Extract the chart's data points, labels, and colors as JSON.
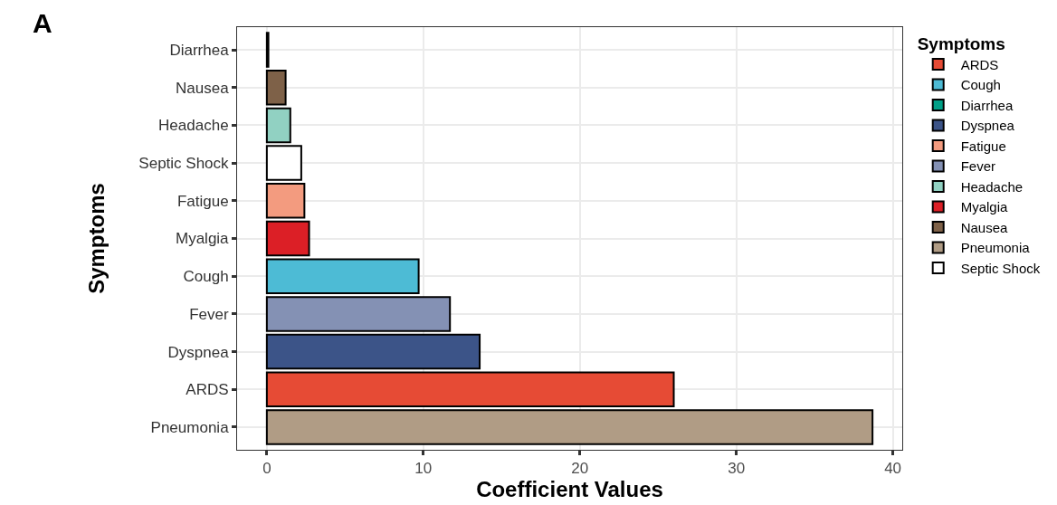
{
  "chart_data": {
    "type": "bar",
    "orientation": "horizontal",
    "xlabel": "Coefficient Values",
    "ylabel": "Symptoms",
    "legend_title": "Symptoms",
    "annotations": [
      "A"
    ],
    "categories": [
      "Diarrhea",
      "Nausea",
      "Headache",
      "Septic Shock",
      "Fatigue",
      "Myalgia",
      "Cough",
      "Fever",
      "Dyspnea",
      "ARDS",
      "Pneumonia"
    ],
    "series": [
      {
        "name": "ARDS",
        "color": "#e64b35",
        "values": [
          null,
          null,
          null,
          null,
          null,
          null,
          null,
          null,
          null,
          26.0,
          null
        ]
      },
      {
        "name": "Cough",
        "color": "#4dbbd5",
        "values": [
          null,
          null,
          null,
          null,
          null,
          null,
          9.7,
          null,
          null,
          null,
          null
        ]
      },
      {
        "name": "Diarrhea",
        "color": "#00a087",
        "values": [
          0.1,
          null,
          null,
          null,
          null,
          null,
          null,
          null,
          null,
          null,
          null
        ]
      },
      {
        "name": "Dyspnea",
        "color": "#3c5488",
        "values": [
          null,
          null,
          null,
          null,
          null,
          null,
          null,
          null,
          13.6,
          null,
          null
        ]
      },
      {
        "name": "Fatigue",
        "color": "#f39b7f",
        "values": [
          null,
          null,
          null,
          null,
          2.4,
          null,
          null,
          null,
          null,
          null,
          null
        ]
      },
      {
        "name": "Fever",
        "color": "#8491b4",
        "values": [
          null,
          null,
          null,
          null,
          null,
          null,
          null,
          11.7,
          null,
          null,
          null
        ]
      },
      {
        "name": "Headache",
        "color": "#91d1c2",
        "values": [
          null,
          null,
          1.5,
          null,
          null,
          null,
          null,
          null,
          null,
          null,
          null
        ]
      },
      {
        "name": "Myalgia",
        "color": "#dc1f26",
        "values": [
          null,
          null,
          null,
          null,
          null,
          2.7,
          null,
          null,
          null,
          null,
          null
        ]
      },
      {
        "name": "Nausea",
        "color": "#7e6148",
        "values": [
          null,
          1.2,
          null,
          null,
          null,
          null,
          null,
          null,
          null,
          null,
          null
        ]
      },
      {
        "name": "Pneumonia",
        "color": "#b09c85",
        "values": [
          null,
          null,
          null,
          null,
          null,
          null,
          null,
          null,
          null,
          null,
          38.7
        ]
      },
      {
        "name": "Septic Shock",
        "color": "#ffffff",
        "values": [
          null,
          null,
          null,
          2.2,
          null,
          null,
          null,
          null,
          null,
          null,
          null
        ]
      }
    ],
    "xlim": [
      -1.9,
      40.6
    ],
    "xticks": [
      0,
      10,
      20,
      30,
      40
    ],
    "grid": true,
    "legend": "right"
  }
}
